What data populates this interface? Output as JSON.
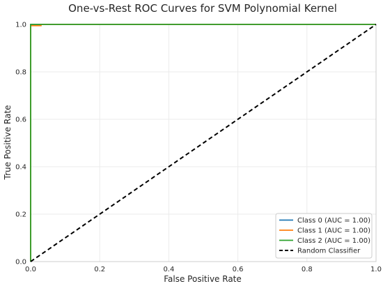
{
  "chart_data": {
    "type": "line",
    "title": "One-vs-Rest ROC Curves for SVM Polynomial Kernel",
    "xlabel": "False Positive Rate",
    "ylabel": "True Positive Rate",
    "xlim": [
      0.0,
      1.0
    ],
    "ylim": [
      0.0,
      1.0
    ],
    "xticks": [
      "0.0",
      "0.2",
      "0.4",
      "0.6",
      "0.8",
      "1.0"
    ],
    "yticks": [
      "0.0",
      "0.2",
      "0.4",
      "0.6",
      "0.8",
      "1.0"
    ],
    "grid": true,
    "legend_position": "bottom-right",
    "series": [
      {
        "name": "Class 0 (AUC = 1.00)",
        "color": "#1f77b4",
        "x": [
          0.0,
          0.0,
          0.0,
          1.0
        ],
        "y": [
          0.0,
          0.84,
          1.0,
          1.0
        ]
      },
      {
        "name": "Class 1 (AUC = 1.00)",
        "color": "#ff7f0e",
        "x": [
          0.0,
          0.0,
          0.03,
          0.03,
          1.0
        ],
        "y": [
          0.0,
          0.995,
          0.995,
          1.0,
          1.0
        ]
      },
      {
        "name": "Class 2 (AUC = 1.00)",
        "color": "#2ca02c",
        "x": [
          0.0,
          0.0,
          1.0
        ],
        "y": [
          0.0,
          1.0,
          1.0
        ]
      },
      {
        "name": "Random Classifier",
        "color": "#000000",
        "dashed": true,
        "x": [
          0.0,
          1.0
        ],
        "y": [
          0.0,
          1.0
        ]
      }
    ]
  }
}
